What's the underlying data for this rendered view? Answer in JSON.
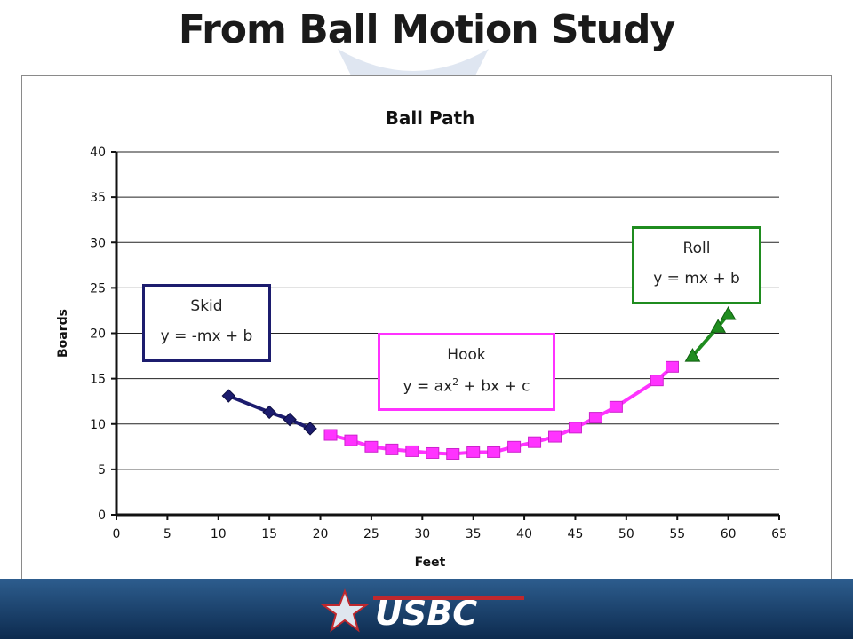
{
  "slide": {
    "title": "From Ball Motion Study"
  },
  "annotations": {
    "skid": {
      "name": "Skid",
      "equation": "y = -mx + b"
    },
    "hook": {
      "name": "Hook",
      "eq_part1": "y = ax",
      "eq_sup": "2",
      "eq_part2": " + bx + c"
    },
    "roll": {
      "name": "Roll",
      "equation": "y = mx + b"
    }
  },
  "chart_data": {
    "type": "line",
    "title": "Ball Path",
    "xlabel": "Feet",
    "ylabel": "Boards",
    "xlim": [
      0,
      65
    ],
    "ylim": [
      0,
      40
    ],
    "xticks": [
      0,
      5,
      10,
      15,
      20,
      25,
      30,
      35,
      40,
      45,
      50,
      55,
      60,
      65
    ],
    "yticks": [
      0,
      5,
      10,
      15,
      20,
      25,
      30,
      35,
      40
    ],
    "grid": "horizontal",
    "legend": "none",
    "series": [
      {
        "color": "#1c1c6e",
        "marker": "diamond",
        "x": [
          11,
          15,
          17,
          19
        ],
        "y": [
          13.1,
          11.3,
          10.5,
          9.5
        ]
      },
      {
        "color": "#ff33ff",
        "marker": "square",
        "x": [
          21,
          23,
          25,
          27,
          29,
          31,
          33,
          35,
          37,
          39,
          41,
          43,
          45,
          47,
          49,
          53,
          54.5
        ],
        "y": [
          8.8,
          8.2,
          7.5,
          7.2,
          7.0,
          6.8,
          6.7,
          6.9,
          6.9,
          7.5,
          8.0,
          8.6,
          9.6,
          10.7,
          11.9,
          14.8,
          16.3
        ]
      },
      {
        "color": "#1f8c1f",
        "marker": "triangle",
        "x": [
          56.5,
          59,
          60
        ],
        "y": [
          17.5,
          20.7,
          22.1
        ]
      }
    ]
  }
}
